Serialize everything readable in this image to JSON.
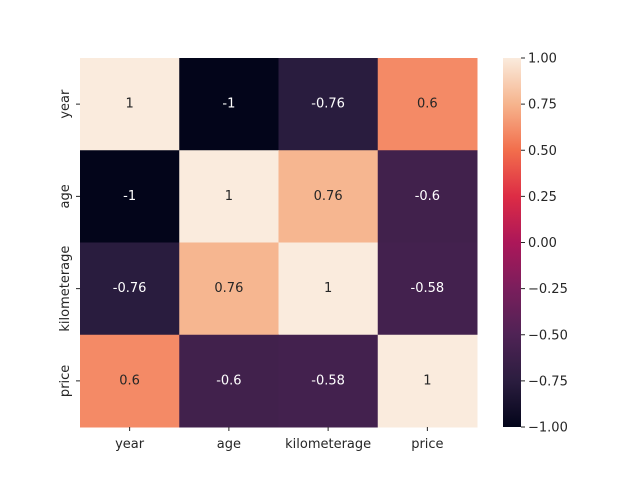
{
  "chart_data": {
    "type": "heatmap",
    "title": "",
    "xlabel": "",
    "ylabel": "",
    "x_categories": [
      "year",
      "age",
      "kilometerage",
      "price"
    ],
    "y_categories": [
      "year",
      "age",
      "kilometerage",
      "price"
    ],
    "matrix": [
      [
        1,
        -1,
        -0.76,
        0.6
      ],
      [
        -1,
        1,
        0.76,
        -0.6
      ],
      [
        -0.76,
        0.76,
        1,
        -0.58
      ],
      [
        0.6,
        -0.6,
        -0.58,
        1
      ]
    ],
    "annotations": [
      [
        "1",
        "-1",
        "-0.76",
        "0.6"
      ],
      [
        "-1",
        "1",
        "0.76",
        "-0.6"
      ],
      [
        "-0.76",
        "0.76",
        "1",
        "-0.58"
      ],
      [
        "0.6",
        "-0.6",
        "-0.58",
        "1"
      ]
    ],
    "vmin": -1.0,
    "vmax": 1.0,
    "colormap": "rocket",
    "colorbar_ticks": [
      "1.00",
      "0.75",
      "0.50",
      "0.25",
      "0.00",
      "−0.25",
      "−0.50",
      "−0.75",
      "−1.00"
    ],
    "colorbar_tick_values": [
      1.0,
      0.75,
      0.5,
      0.25,
      0.0,
      -0.25,
      -0.5,
      -0.75,
      -1.0
    ]
  }
}
